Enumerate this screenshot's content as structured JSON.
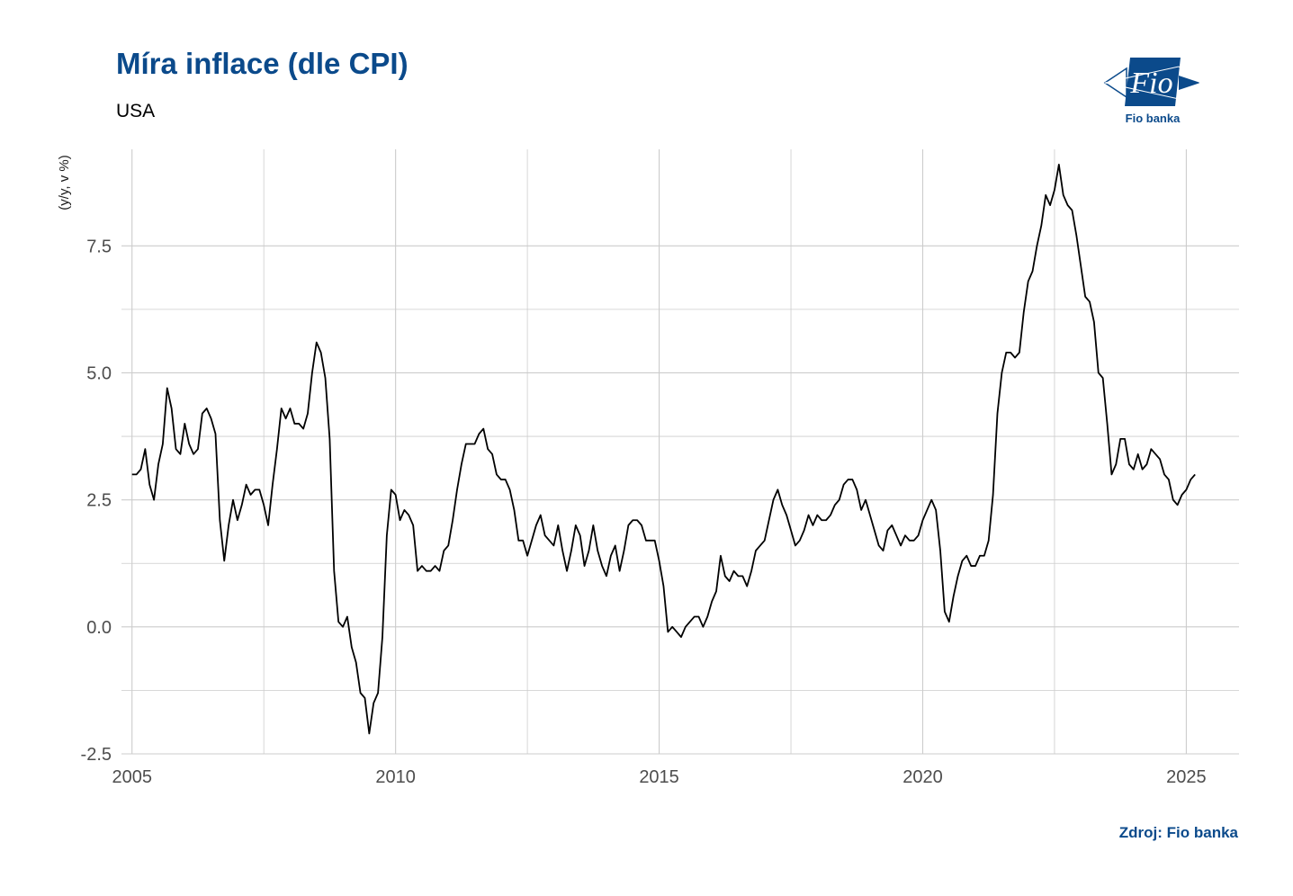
{
  "title": "Míra inflace (dle CPI)",
  "subtitle": "USA",
  "source": "Zdroj: Fio banka",
  "logo": {
    "text": "Fio",
    "caption": "Fio banka"
  },
  "colors": {
    "brand": "#0b4a8b",
    "line": "#000000",
    "grid": "#cccccc"
  },
  "chart_data": {
    "type": "line",
    "title": "Míra inflace (dle CPI)",
    "subtitle": "USA",
    "xlabel": "",
    "ylabel": "(y/y, v %)",
    "xlim": [
      2004.8,
      2026.0
    ],
    "ylim": [
      -2.5,
      9.4
    ],
    "xticks": [
      2005,
      2010,
      2015,
      2020,
      2025
    ],
    "xtick_labels": [
      "2005",
      "2010",
      "2015",
      "2020",
      "2025"
    ],
    "yticks": [
      -2.5,
      0,
      2.5,
      5,
      7.5
    ],
    "ytick_labels": [
      "-2.5",
      "0.0",
      "2.5",
      "5.0",
      "7.5"
    ],
    "grid": true,
    "legend": "none",
    "series": [
      {
        "x_start": 2005.0,
        "x_step_months": 1,
        "values": [
          3.0,
          3.0,
          3.1,
          3.5,
          2.8,
          2.5,
          3.2,
          3.6,
          4.7,
          4.3,
          3.5,
          3.4,
          4.0,
          3.6,
          3.4,
          3.5,
          4.2,
          4.3,
          4.1,
          3.8,
          2.1,
          1.3,
          2.0,
          2.5,
          2.1,
          2.4,
          2.8,
          2.6,
          2.7,
          2.7,
          2.4,
          2.0,
          2.8,
          3.5,
          4.3,
          4.1,
          4.3,
          4.0,
          4.0,
          3.9,
          4.2,
          5.0,
          5.6,
          5.4,
          4.9,
          3.7,
          1.1,
          0.1,
          0.0,
          0.2,
          -0.4,
          -0.7,
          -1.3,
          -1.4,
          -2.1,
          -1.5,
          -1.3,
          -0.2,
          1.8,
          2.7,
          2.6,
          2.1,
          2.3,
          2.2,
          2.0,
          1.1,
          1.2,
          1.1,
          1.1,
          1.2,
          1.1,
          1.5,
          1.6,
          2.1,
          2.7,
          3.2,
          3.6,
          3.6,
          3.6,
          3.8,
          3.9,
          3.5,
          3.4,
          3.0,
          2.9,
          2.9,
          2.7,
          2.3,
          1.7,
          1.7,
          1.4,
          1.7,
          2.0,
          2.2,
          1.8,
          1.7,
          1.6,
          2.0,
          1.5,
          1.1,
          1.5,
          2.0,
          1.8,
          1.2,
          1.5,
          2.0,
          1.5,
          1.2,
          1.0,
          1.4,
          1.6,
          1.1,
          1.5,
          2.0,
          2.1,
          2.1,
          2.0,
          1.7,
          1.7,
          1.7,
          1.3,
          0.8,
          -0.1,
          0.0,
          -0.1,
          -0.2,
          0.0,
          0.1,
          0.2,
          0.2,
          0.0,
          0.2,
          0.5,
          0.7,
          1.4,
          1.0,
          0.9,
          1.1,
          1.0,
          1.0,
          0.8,
          1.1,
          1.5,
          1.6,
          1.7,
          2.1,
          2.5,
          2.7,
          2.4,
          2.2,
          1.9,
          1.6,
          1.7,
          1.9,
          2.2,
          2.0,
          2.2,
          2.1,
          2.1,
          2.2,
          2.4,
          2.5,
          2.8,
          2.9,
          2.9,
          2.7,
          2.3,
          2.5,
          2.2,
          1.9,
          1.6,
          1.5,
          1.9,
          2.0,
          1.8,
          1.6,
          1.8,
          1.7,
          1.7,
          1.8,
          2.1,
          2.3,
          2.5,
          2.3,
          1.5,
          0.3,
          0.1,
          0.6,
          1.0,
          1.3,
          1.4,
          1.2,
          1.2,
          1.4,
          1.4,
          1.7,
          2.6,
          4.2,
          5.0,
          5.4,
          5.4,
          5.3,
          5.4,
          6.2,
          6.8,
          7.0,
          7.5,
          7.9,
          8.5,
          8.3,
          8.6,
          9.1,
          8.5,
          8.3,
          8.2,
          7.7,
          7.1,
          6.5,
          6.4,
          6.0,
          5.0,
          4.9,
          4.0,
          3.0,
          3.2,
          3.7,
          3.7,
          3.2,
          3.1,
          3.4,
          3.1,
          3.2,
          3.5,
          3.4,
          3.3,
          3.0,
          2.9,
          2.5,
          2.4,
          2.6,
          2.7,
          2.9,
          3.0
        ]
      }
    ]
  }
}
